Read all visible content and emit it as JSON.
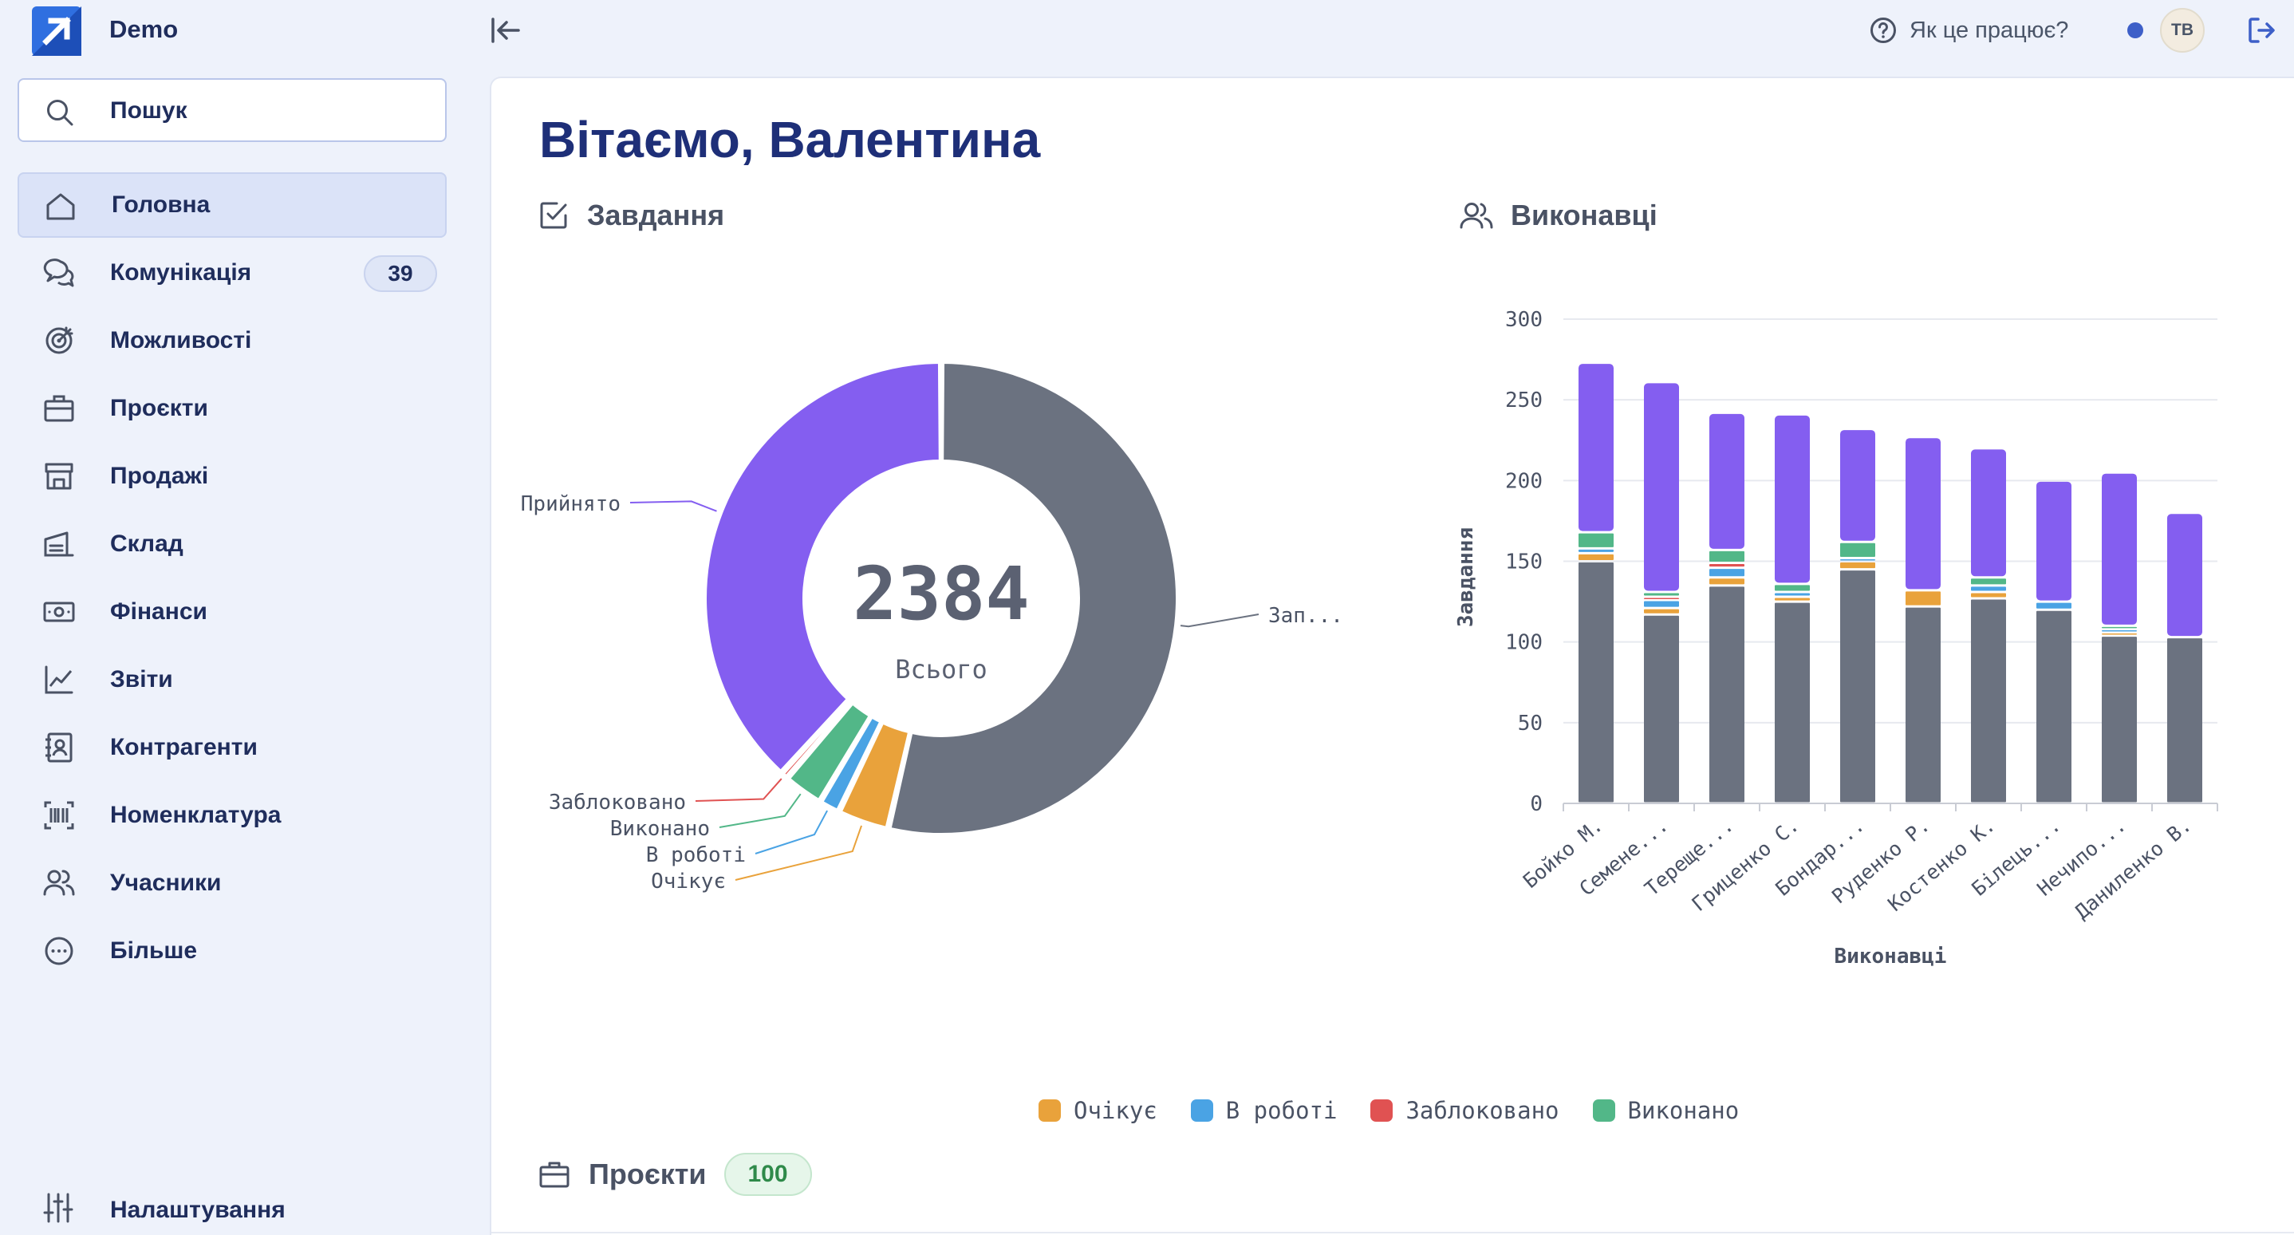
{
  "app": {
    "title": "Demo"
  },
  "topbar": {
    "help_label": "Як це працює?",
    "avatar_initials": "ТВ"
  },
  "search": {
    "placeholder": "Пошук"
  },
  "sidebar": {
    "items": [
      {
        "label": "Головна",
        "icon": "home-icon",
        "active": true
      },
      {
        "label": "Комунікація",
        "icon": "chat-icon",
        "badge": "39"
      },
      {
        "label": "Можливості",
        "icon": "target-icon"
      },
      {
        "label": "Проєкти",
        "icon": "briefcase-icon"
      },
      {
        "label": "Продажі",
        "icon": "store-icon"
      },
      {
        "label": "Склад",
        "icon": "warehouse-icon"
      },
      {
        "label": "Фінанси",
        "icon": "banknote-icon"
      },
      {
        "label": "Звіти",
        "icon": "chart-line-icon"
      },
      {
        "label": "Контрагенти",
        "icon": "contact-book-icon"
      },
      {
        "label": "Номенклатура",
        "icon": "barcode-icon"
      },
      {
        "label": "Учасники",
        "icon": "users-icon"
      },
      {
        "label": "Більше",
        "icon": "more-icon"
      }
    ],
    "settings_label": "Налаштування"
  },
  "main": {
    "greeting": "Вітаємо, Валентина",
    "tasks_title": "Завдання",
    "performers_title": "Виконавці",
    "projects_title": "Проєкти",
    "projects_count": "100"
  },
  "colors": {
    "waiting": "#e9a23b",
    "in_progress": "#4aa3e4",
    "blocked": "#e05252",
    "done": "#52b788",
    "accepted": "#845ef0",
    "planned": "#6b7280"
  },
  "chart_data": [
    {
      "type": "pie",
      "variant": "donut",
      "total": "2384",
      "total_label": "Всього",
      "slices": [
        {
          "label": "Зап...",
          "value": 1278,
          "color": "#6b7280"
        },
        {
          "label": "Очікує",
          "value": 84,
          "color": "#e9a23b"
        },
        {
          "label": "В роботі",
          "value": 34,
          "color": "#4aa3e4"
        },
        {
          "label": "Виконано",
          "value": 65,
          "color": "#52b788"
        },
        {
          "label": "Заблоковано",
          "value": 12,
          "color": "#e05252"
        },
        {
          "label": "Прийнято",
          "value": 911,
          "color": "#845ef0"
        }
      ]
    },
    {
      "type": "bar",
      "stacked": true,
      "xlabel": "Виконавці",
      "ylabel": "Завдання",
      "ylim": [
        0,
        300
      ],
      "yticks": [
        "0",
        "50",
        "100",
        "150",
        "200",
        "250",
        "300"
      ],
      "grid": true,
      "categories": [
        "Бойко М.",
        "Семене...",
        "Тереще...",
        "Гриценко С.",
        "Бондар...",
        "Руденко Р.",
        "Костенко К.",
        "Білець...",
        "Нечипо...",
        "Даниленко В."
      ],
      "series": [
        {
          "color": "#6b7280",
          "values": [
            150,
            117,
            135,
            125,
            145,
            122,
            127,
            120,
            104,
            103
          ]
        },
        {
          "name": "Очікує",
          "color": "#e9a23b",
          "values": [
            5,
            4,
            5,
            3,
            5,
            10,
            4,
            0,
            2,
            0
          ]
        },
        {
          "name": "В роботі",
          "color": "#4aa3e4",
          "values": [
            3,
            5,
            6,
            3,
            2,
            0,
            4,
            5,
            2,
            0
          ]
        },
        {
          "name": "Заблоковано",
          "color": "#e05252",
          "values": [
            0,
            2,
            3,
            0,
            0,
            0,
            0,
            0,
            0,
            0
          ]
        },
        {
          "name": "Виконано",
          "color": "#52b788",
          "values": [
            10,
            3,
            8,
            5,
            10,
            0,
            5,
            0,
            2,
            0
          ]
        },
        {
          "color": "#845ef0",
          "values": [
            105,
            130,
            85,
            105,
            70,
            95,
            80,
            75,
            95,
            77
          ]
        }
      ]
    }
  ],
  "legend": [
    {
      "label": "Очікує",
      "color": "#e9a23b"
    },
    {
      "label": "В роботі",
      "color": "#4aa3e4"
    },
    {
      "label": "Заблоковано",
      "color": "#e05252"
    },
    {
      "label": "Виконано",
      "color": "#52b788"
    }
  ]
}
